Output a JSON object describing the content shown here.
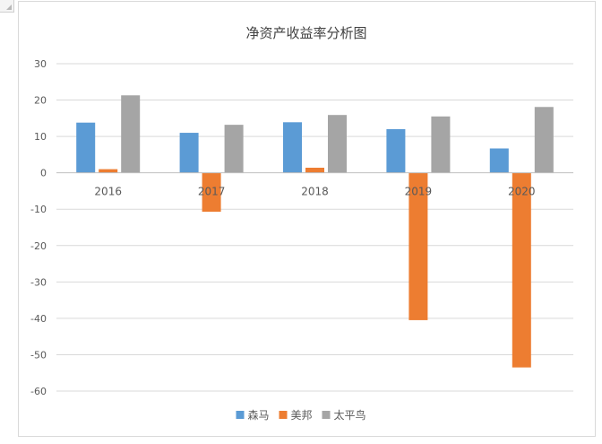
{
  "chart_data": {
    "type": "bar",
    "title": "净资产收益率分析图",
    "categories": [
      "2016",
      "2017",
      "2018",
      "2019",
      "2020"
    ],
    "series": [
      {
        "name": "森马",
        "values": [
          13.8,
          11.0,
          13.9,
          12.0,
          6.7
        ],
        "color": "#5b9bd5"
      },
      {
        "name": "美邦",
        "values": [
          1.0,
          -10.7,
          1.4,
          -40.5,
          -53.5
        ],
        "color": "#ed7d31"
      },
      {
        "name": "太平鸟",
        "values": [
          21.3,
          13.2,
          15.9,
          15.5,
          18.1
        ],
        "color": "#a5a5a5"
      }
    ],
    "yticks": [
      "30",
      "20",
      "10",
      "0",
      "-10",
      "-20",
      "-30",
      "-40",
      "-50",
      "-60"
    ],
    "ylim": [
      -60,
      30
    ],
    "xlabel": "",
    "ylabel": "",
    "grid": true,
    "legend_position": "bottom"
  }
}
